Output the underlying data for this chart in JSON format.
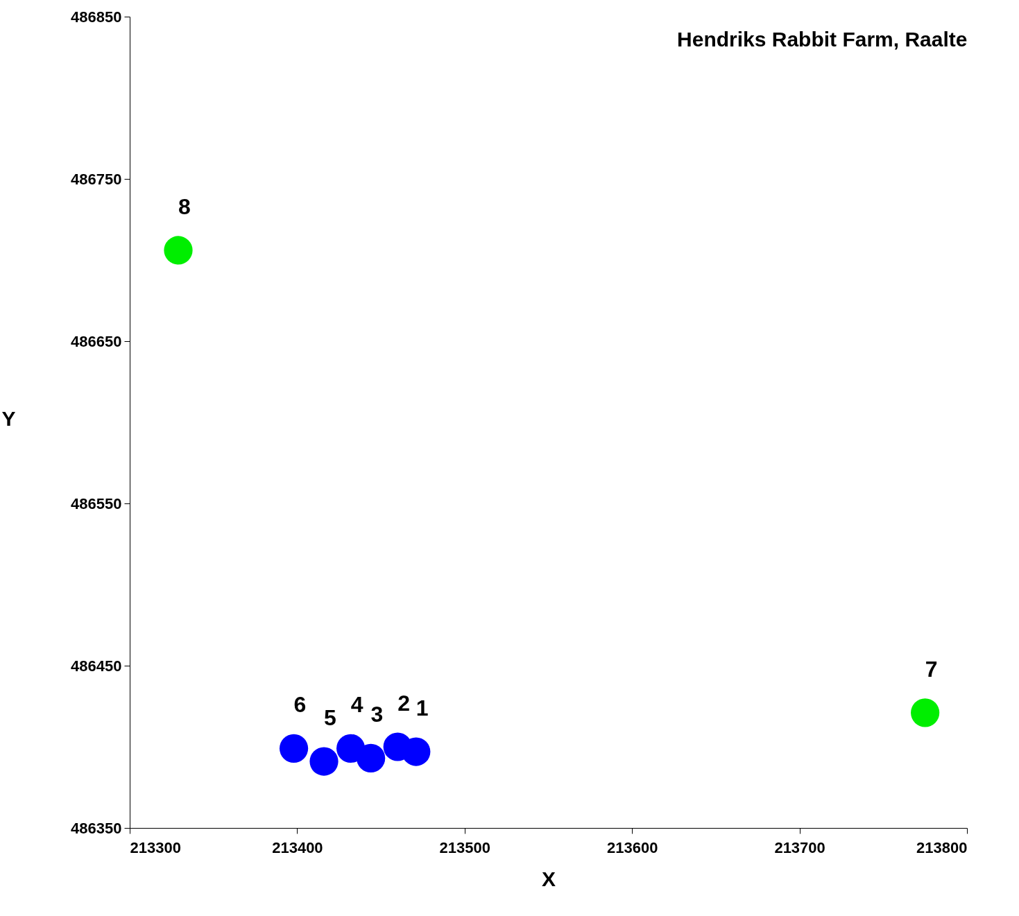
{
  "chart_data": {
    "type": "scatter",
    "title": "Hendriks Rabbit Farm, Raalte",
    "xlabel": "X",
    "ylabel": "Y",
    "series": [
      {
        "color": "#0000ff",
        "x": [
          213471,
          213460,
          213444,
          213432,
          213416,
          213398
        ],
        "values": [
          486397,
          486400,
          486393,
          486399,
          486391,
          486399
        ]
      },
      {
        "color": "#00ee00",
        "x": [
          213775,
          213329
        ],
        "values": [
          486421,
          486706
        ]
      }
    ],
    "annotations": [
      {
        "text": "1",
        "x": 213471,
        "y": 486397
      },
      {
        "text": "2",
        "x": 213460,
        "y": 486400
      },
      {
        "text": "3",
        "x": 213444,
        "y": 486393
      },
      {
        "text": "4",
        "x": 213432,
        "y": 486399
      },
      {
        "text": "5",
        "x": 213416,
        "y": 486391
      },
      {
        "text": "6",
        "x": 213398,
        "y": 486399
      },
      {
        "text": "7",
        "x": 213775,
        "y": 486421
      },
      {
        "text": "8",
        "x": 213329,
        "y": 486706
      }
    ],
    "xlim": [
      213300,
      213800
    ],
    "xticks": [
      213300,
      213400,
      213500,
      213600,
      213700,
      213800
    ],
    "ylim": [
      486350,
      486850
    ],
    "yticks": [
      486350,
      486450,
      486550,
      486650,
      486750,
      486850
    ],
    "marker": "circle",
    "grid": false,
    "legend": false
  }
}
